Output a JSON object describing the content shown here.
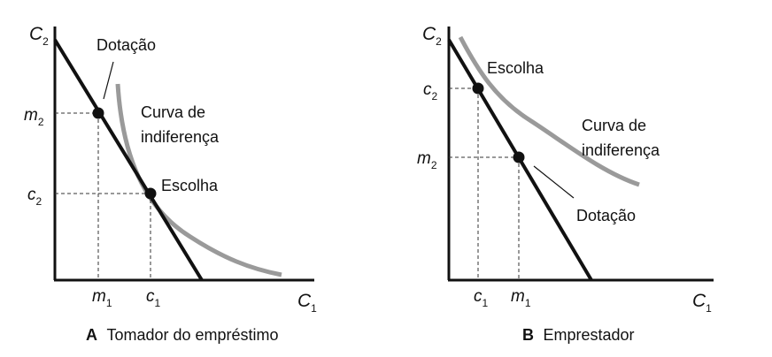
{
  "panel_a": {
    "y_axis": {
      "main": "C",
      "sub": "2"
    },
    "x_axis": {
      "main": "C",
      "sub": "1"
    },
    "y_ticks": [
      {
        "main": "m",
        "sub": "2"
      },
      {
        "main": "c",
        "sub": "2"
      }
    ],
    "x_ticks": [
      {
        "main": "m",
        "sub": "1"
      },
      {
        "main": "c",
        "sub": "1"
      }
    ],
    "endowment_label": "Dotação",
    "curve_label_line1": "Curva de",
    "curve_label_line2": "indiferença",
    "choice_label": "Escolha",
    "caption_letter": "A",
    "caption_text": "Tomador do empréstimo"
  },
  "panel_b": {
    "y_axis": {
      "main": "C",
      "sub": "2"
    },
    "x_axis": {
      "main": "C",
      "sub": "1"
    },
    "y_ticks": [
      {
        "main": "c",
        "sub": "2"
      },
      {
        "main": "m",
        "sub": "2"
      }
    ],
    "x_ticks": [
      {
        "main": "c",
        "sub": "1"
      },
      {
        "main": "m",
        "sub": "1"
      }
    ],
    "choice_label": "Escolha",
    "curve_label_line1": "Curva de",
    "curve_label_line2": "indiferença",
    "endowment_label": "Dotação",
    "caption_letter": "B",
    "caption_text": "Emprestador"
  },
  "colors": {
    "axis": "#111111",
    "budget_line": "#111111",
    "indifference_curve": "#9a9a9a",
    "guide_lines": "#333333"
  }
}
